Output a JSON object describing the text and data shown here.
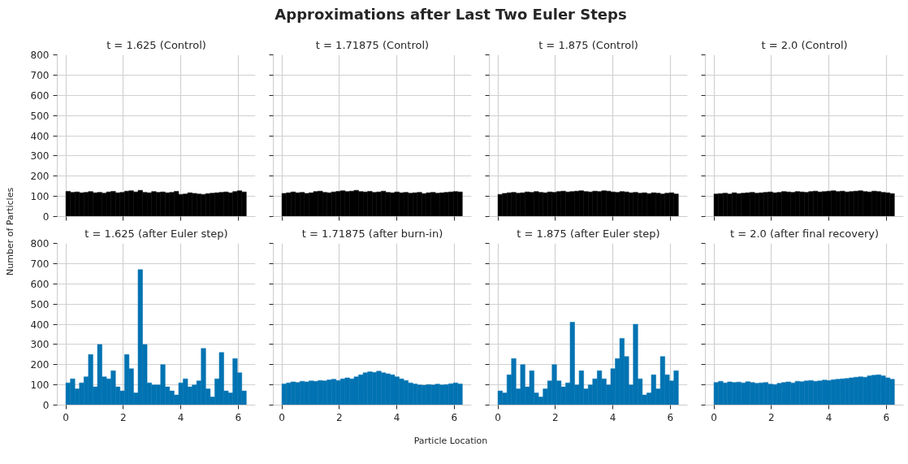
{
  "chart_data": [
    {
      "type": "histogram",
      "title": "t = 1.625 (Control)",
      "annotations": [
        "Approximations after Last Two Euler Steps"
      ],
      "ylabel": "Number of Particles",
      "color": "#000000",
      "bins": [
        0,
        0.157,
        0.314,
        0.471,
        0.628,
        0.785,
        0.942,
        1.1,
        1.257,
        1.414,
        1.571,
        1.728,
        1.885,
        2.042,
        2.199,
        2.356,
        2.513,
        2.67,
        2.827,
        2.985,
        3.142,
        3.299,
        3.456,
        3.613,
        3.77,
        3.927,
        4.084,
        4.241,
        4.398,
        4.555,
        4.712,
        4.869,
        5.027,
        5.184,
        5.341,
        5.498,
        5.655,
        5.812,
        5.969,
        6.126,
        6.283
      ],
      "values": [
        125,
        120,
        122,
        118,
        120,
        124,
        118,
        120,
        116,
        122,
        125,
        118,
        120,
        126,
        128,
        122,
        130,
        120,
        118,
        124,
        120,
        122,
        118,
        120,
        125,
        110,
        112,
        118,
        115,
        112,
        110,
        114,
        116,
        118,
        120,
        122,
        118,
        124,
        128,
        122
      ],
      "xlim": [
        -0.3,
        6.6
      ],
      "xticks": [
        0,
        2,
        4,
        6
      ],
      "ylim": [
        0,
        800
      ],
      "yticks": [
        0,
        100,
        200,
        300,
        400,
        500,
        600,
        700,
        800
      ],
      "grid": true,
      "tick_labels": "y"
    },
    {
      "type": "histogram",
      "title": "t = 1.71875 (Control)",
      "color": "#000000",
      "bins": [
        0,
        0.157,
        0.314,
        0.471,
        0.628,
        0.785,
        0.942,
        1.1,
        1.257,
        1.414,
        1.571,
        1.728,
        1.885,
        2.042,
        2.199,
        2.356,
        2.513,
        2.67,
        2.827,
        2.985,
        3.142,
        3.299,
        3.456,
        3.613,
        3.77,
        3.927,
        4.084,
        4.241,
        4.398,
        4.555,
        4.712,
        4.869,
        5.027,
        5.184,
        5.341,
        5.498,
        5.655,
        5.812,
        5.969,
        6.126,
        6.283
      ],
      "values": [
        115,
        118,
        122,
        118,
        120,
        115,
        118,
        124,
        126,
        120,
        118,
        122,
        125,
        128,
        124,
        126,
        130,
        124,
        122,
        125,
        120,
        122,
        126,
        120,
        118,
        122,
        118,
        120,
        116,
        118,
        120,
        114,
        118,
        120,
        116,
        118,
        120,
        122,
        124,
        122
      ],
      "xlim": [
        -0.3,
        6.6
      ],
      "xticks": [
        0,
        2,
        4,
        6
      ],
      "ylim": [
        0,
        800
      ],
      "yticks": [
        0,
        100,
        200,
        300,
        400,
        500,
        600,
        700,
        800
      ],
      "grid": true,
      "tick_labels": false
    },
    {
      "type": "histogram",
      "title": "t = 1.875 (Control)",
      "color": "#000000",
      "bins": [
        0,
        0.157,
        0.314,
        0.471,
        0.628,
        0.785,
        0.942,
        1.1,
        1.257,
        1.414,
        1.571,
        1.728,
        1.885,
        2.042,
        2.199,
        2.356,
        2.513,
        2.67,
        2.827,
        2.985,
        3.142,
        3.299,
        3.456,
        3.613,
        3.77,
        3.927,
        4.084,
        4.241,
        4.398,
        4.555,
        4.712,
        4.869,
        5.027,
        5.184,
        5.341,
        5.498,
        5.655,
        5.812,
        5.969,
        6.126,
        6.283
      ],
      "values": [
        110,
        115,
        118,
        120,
        116,
        118,
        122,
        120,
        124,
        120,
        118,
        122,
        120,
        124,
        126,
        122,
        124,
        126,
        128,
        124,
        122,
        126,
        124,
        128,
        126,
        122,
        120,
        124,
        122,
        118,
        120,
        116,
        118,
        114,
        118,
        116,
        112,
        116,
        118,
        112
      ],
      "xlim": [
        -0.3,
        6.6
      ],
      "xticks": [
        0,
        2,
        4,
        6
      ],
      "ylim": [
        0,
        800
      ],
      "yticks": [
        0,
        100,
        200,
        300,
        400,
        500,
        600,
        700,
        800
      ],
      "grid": true,
      "tick_labels": false
    },
    {
      "type": "histogram",
      "title": "t = 2.0 (Control)",
      "color": "#000000",
      "bins": [
        0,
        0.157,
        0.314,
        0.471,
        0.628,
        0.785,
        0.942,
        1.1,
        1.257,
        1.414,
        1.571,
        1.728,
        1.885,
        2.042,
        2.199,
        2.356,
        2.513,
        2.67,
        2.827,
        2.985,
        3.142,
        3.299,
        3.456,
        3.613,
        3.77,
        3.927,
        4.084,
        4.241,
        4.398,
        4.555,
        4.712,
        4.869,
        5.027,
        5.184,
        5.341,
        5.498,
        5.655,
        5.812,
        5.969,
        6.126,
        6.283
      ],
      "values": [
        112,
        114,
        116,
        112,
        118,
        114,
        116,
        118,
        120,
        116,
        118,
        120,
        122,
        118,
        120,
        124,
        122,
        120,
        124,
        122,
        120,
        124,
        126,
        122,
        124,
        126,
        128,
        124,
        126,
        122,
        124,
        126,
        128,
        124,
        122,
        126,
        124,
        120,
        118,
        114
      ],
      "xlim": [
        -0.3,
        6.6
      ],
      "xticks": [
        0,
        2,
        4,
        6
      ],
      "ylim": [
        0,
        800
      ],
      "yticks": [
        0,
        100,
        200,
        300,
        400,
        500,
        600,
        700,
        800
      ],
      "grid": true,
      "tick_labels": false
    },
    {
      "type": "histogram",
      "title": "t = 1.625 (after Euler step)",
      "color": "#0173b2",
      "bins": [
        0,
        0.157,
        0.314,
        0.471,
        0.628,
        0.785,
        0.942,
        1.1,
        1.257,
        1.414,
        1.571,
        1.728,
        1.885,
        2.042,
        2.199,
        2.356,
        2.513,
        2.67,
        2.827,
        2.985,
        3.142,
        3.299,
        3.456,
        3.613,
        3.77,
        3.927,
        4.084,
        4.241,
        4.398,
        4.555,
        4.712,
        4.869,
        5.027,
        5.184,
        5.341,
        5.498,
        5.655,
        5.812,
        5.969,
        6.126,
        6.283
      ],
      "values": [
        110,
        130,
        80,
        110,
        140,
        250,
        90,
        300,
        140,
        130,
        170,
        90,
        70,
        250,
        180,
        60,
        670,
        300,
        110,
        100,
        100,
        200,
        90,
        70,
        50,
        110,
        130,
        90,
        100,
        120,
        280,
        80,
        40,
        130,
        260,
        70,
        60,
        230,
        160,
        70
      ],
      "xlim": [
        -0.3,
        6.6
      ],
      "xticks": [
        0,
        2,
        4,
        6
      ],
      "ylim": [
        0,
        800
      ],
      "yticks": [
        0,
        100,
        200,
        300,
        400,
        500,
        600,
        700,
        800
      ],
      "grid": true
    },
    {
      "type": "histogram",
      "title": "t = 1.71875 (after burn-in)",
      "xlabel": "Particle Location",
      "color": "#0173b2",
      "bins": [
        0,
        0.157,
        0.314,
        0.471,
        0.628,
        0.785,
        0.942,
        1.1,
        1.257,
        1.414,
        1.571,
        1.728,
        1.885,
        2.042,
        2.199,
        2.356,
        2.513,
        2.67,
        2.827,
        2.985,
        3.142,
        3.299,
        3.456,
        3.613,
        3.77,
        3.927,
        4.084,
        4.241,
        4.398,
        4.555,
        4.712,
        4.869,
        5.027,
        5.184,
        5.341,
        5.498,
        5.655,
        5.812,
        5.969,
        6.126,
        6.283
      ],
      "values": [
        105,
        110,
        115,
        112,
        118,
        115,
        120,
        118,
        122,
        120,
        125,
        128,
        122,
        130,
        135,
        130,
        140,
        150,
        160,
        165,
        162,
        168,
        160,
        155,
        150,
        140,
        130,
        122,
        110,
        105,
        100,
        98,
        102,
        100,
        104,
        100,
        102,
        106,
        110,
        105
      ],
      "xlim": [
        -0.3,
        6.6
      ],
      "xticks": [
        0,
        2,
        4,
        6
      ],
      "ylim": [
        0,
        800
      ],
      "yticks": [
        0,
        100,
        200,
        300,
        400,
        500,
        600,
        700,
        800
      ],
      "grid": true,
      "tick_labels": "x"
    },
    {
      "type": "histogram",
      "title": "t = 1.875 (after Euler step)",
      "color": "#0173b2",
      "bins": [
        0,
        0.157,
        0.314,
        0.471,
        0.628,
        0.785,
        0.942,
        1.1,
        1.257,
        1.414,
        1.571,
        1.728,
        1.885,
        2.042,
        2.199,
        2.356,
        2.513,
        2.67,
        2.827,
        2.985,
        3.142,
        3.299,
        3.456,
        3.613,
        3.77,
        3.927,
        4.084,
        4.241,
        4.398,
        4.555,
        4.712,
        4.869,
        5.027,
        5.184,
        5.341,
        5.498,
        5.655,
        5.812,
        5.969,
        6.126,
        6.283
      ],
      "values": [
        70,
        60,
        150,
        230,
        80,
        200,
        90,
        170,
        60,
        40,
        80,
        120,
        200,
        120,
        90,
        110,
        410,
        100,
        170,
        80,
        100,
        130,
        170,
        130,
        100,
        180,
        230,
        330,
        240,
        100,
        400,
        130,
        50,
        60,
        150,
        80,
        240,
        150,
        120,
        170
      ],
      "xlim": [
        -0.3,
        6.6
      ],
      "xticks": [
        0,
        2,
        4,
        6
      ],
      "ylim": [
        0,
        800
      ],
      "yticks": [
        0,
        100,
        200,
        300,
        400,
        500,
        600,
        700,
        800
      ],
      "grid": true,
      "tick_labels": "x"
    },
    {
      "type": "histogram",
      "title": "t = 2.0 (after final recovery)",
      "color": "#0173b2",
      "bins": [
        0,
        0.157,
        0.314,
        0.471,
        0.628,
        0.785,
        0.942,
        1.1,
        1.257,
        1.414,
        1.571,
        1.728,
        1.885,
        2.042,
        2.199,
        2.356,
        2.513,
        2.67,
        2.827,
        2.985,
        3.142,
        3.299,
        3.456,
        3.613,
        3.77,
        3.927,
        4.084,
        4.241,
        4.398,
        4.555,
        4.712,
        4.869,
        5.027,
        5.184,
        5.341,
        5.498,
        5.655,
        5.812,
        5.969,
        6.126,
        6.283
      ],
      "values": [
        112,
        118,
        110,
        115,
        112,
        114,
        110,
        116,
        112,
        108,
        110,
        112,
        104,
        102,
        108,
        112,
        115,
        110,
        118,
        116,
        120,
        122,
        118,
        120,
        124,
        122,
        126,
        128,
        130,
        132,
        135,
        138,
        140,
        138,
        145,
        148,
        150,
        145,
        135,
        128
      ],
      "xlim": [
        -0.3,
        6.6
      ],
      "xticks": [
        0,
        2,
        4,
        6
      ],
      "ylim": [
        0,
        800
      ],
      "yticks": [
        0,
        100,
        200,
        300,
        400,
        500,
        600,
        700,
        800
      ],
      "grid": true,
      "tick_labels": "x"
    }
  ]
}
